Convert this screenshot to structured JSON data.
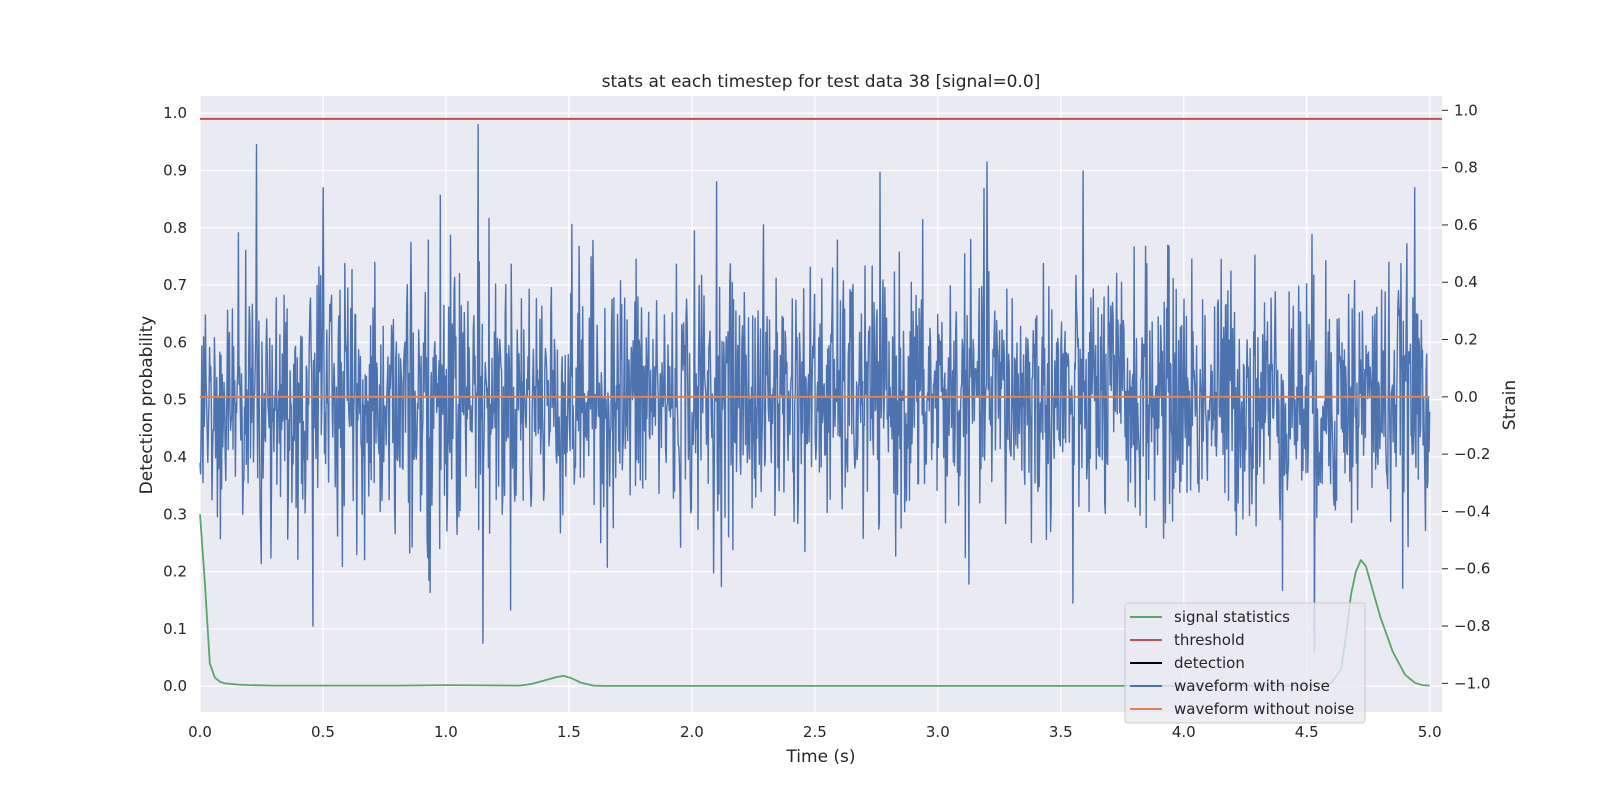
{
  "chart_data": {
    "type": "line",
    "title": "stats at each timestep for test data 38 [signal=0.0]",
    "xlabel": "Time (s)",
    "ylabel": "Detection probability",
    "y2label": "Strain",
    "xlim": [
      0.0,
      5.05
    ],
    "ylim": [
      -0.045,
      1.03
    ],
    "y2lim": [
      -1.1,
      1.05
    ],
    "xticks": [
      "0.0",
      "0.5",
      "1.0",
      "1.5",
      "2.0",
      "2.5",
      "3.0",
      "3.5",
      "4.0",
      "4.5",
      "5.0"
    ],
    "yticks": [
      "0.0",
      "0.1",
      "0.2",
      "0.3",
      "0.4",
      "0.5",
      "0.6",
      "0.7",
      "0.8",
      "0.9",
      "1.0"
    ],
    "y2ticks": [
      "−1.0",
      "−0.8",
      "−0.6",
      "−0.4",
      "−0.2",
      "0.0",
      "0.2",
      "0.4",
      "0.6",
      "0.8",
      "1.0"
    ],
    "grid": true,
    "legend_position": "lower-right",
    "colors": {
      "signal_statistics": "#55a868",
      "threshold": "#c44e52",
      "detection": "#000000",
      "waveform_with_noise": "#4c72b0",
      "waveform_without_noise": "#dd8452",
      "plot_bg": "#eaeaf2",
      "grid": "#ffffff"
    },
    "series": [
      {
        "name": "signal statistics",
        "axis": "left",
        "x": [
          0.0,
          0.02,
          0.04,
          0.06,
          0.08,
          0.1,
          0.15,
          0.2,
          0.3,
          0.5,
          0.8,
          1.0,
          1.3,
          1.35,
          1.4,
          1.45,
          1.48,
          1.51,
          1.55,
          1.6,
          1.65,
          2.0,
          2.5,
          3.0,
          3.5,
          4.0,
          4.5,
          4.6,
          4.64,
          4.66,
          4.68,
          4.7,
          4.72,
          4.74,
          4.76,
          4.8,
          4.85,
          4.9,
          4.94,
          4.97,
          5.0
        ],
        "y": [
          0.3,
          0.18,
          0.04,
          0.015,
          0.008,
          0.005,
          0.003,
          0.002,
          0.001,
          0.001,
          0.001,
          0.002,
          0.001,
          0.004,
          0.01,
          0.016,
          0.018,
          0.014,
          0.006,
          0.001,
          0.0005,
          0.0005,
          0.0005,
          0.0005,
          0.0005,
          0.0005,
          0.001,
          0.005,
          0.03,
          0.09,
          0.16,
          0.2,
          0.22,
          0.21,
          0.18,
          0.12,
          0.06,
          0.02,
          0.006,
          0.002,
          0.001
        ]
      },
      {
        "name": "threshold",
        "axis": "left",
        "x": [
          0.0,
          5.05
        ],
        "y": [
          0.99,
          0.99
        ]
      },
      {
        "name": "detection",
        "axis": "left",
        "x": [],
        "y": []
      },
      {
        "name": "waveform with noise",
        "axis": "right",
        "noise_rms": 0.22,
        "x_range": [
          0.0,
          5.0
        ],
        "samples": 2048,
        "peaks": [
          {
            "x": 0.23,
            "y": 0.88
          },
          {
            "x": 0.5,
            "y": 0.73
          },
          {
            "x": 1.13,
            "y": 0.95
          },
          {
            "x": 1.15,
            "y": -0.86
          },
          {
            "x": 0.46,
            "y": -0.8
          },
          {
            "x": 3.2,
            "y": 0.82
          },
          {
            "x": 4.94,
            "y": 0.73
          },
          {
            "x": 4.53,
            "y": -0.89
          },
          {
            "x": 3.55,
            "y": -0.72
          },
          {
            "x": 2.1,
            "y": 0.75
          }
        ]
      },
      {
        "name": "waveform without noise",
        "axis": "right",
        "x": [
          0.0,
          5.0
        ],
        "y": [
          0.0,
          0.0
        ]
      }
    ]
  }
}
